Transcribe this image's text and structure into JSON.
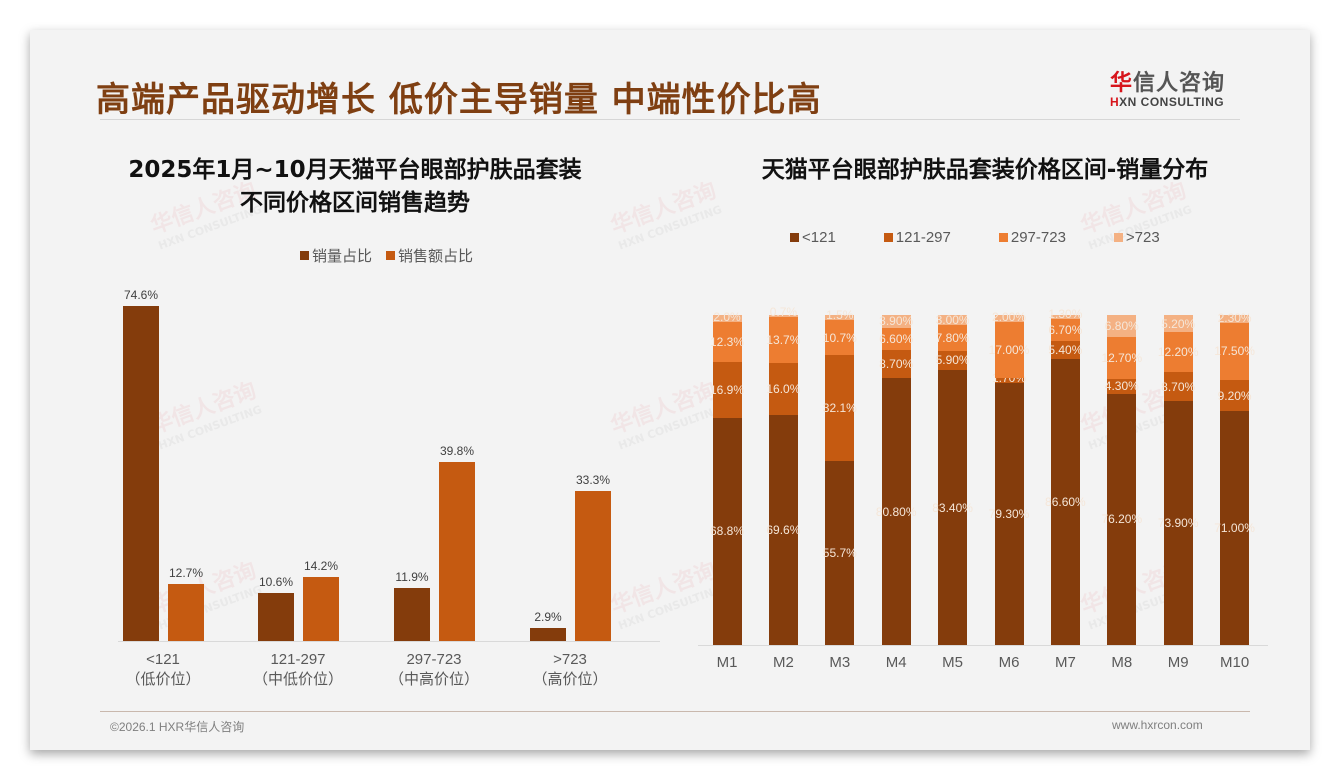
{
  "header": {
    "title": "高端产品驱动增长 低价主导销量 中端性价比高",
    "logo_cn_red": "华",
    "logo_cn_rest": "信人咨询",
    "logo_en_red": "H",
    "logo_en_rest": "XN CONSULTING"
  },
  "left_chart": {
    "title_line1": "2025年1月~10月天猫平台眼部护肤品套装",
    "title_line2": "不同价格区间销售趋势",
    "legend": [
      "销量占比",
      "销售额占比"
    ]
  },
  "right_chart": {
    "title": "天猫平台眼部护肤品套装价格区间-销量分布",
    "legend": [
      "<121",
      "121-297",
      "297-723",
      ">723"
    ]
  },
  "colors": {
    "dark_brown": "#843c0c",
    "orange": "#c55a11",
    "light_orange": "#ed7d31",
    "pale_orange": "#f4b183",
    "title_brown": "#7f3f12",
    "background": "#f3f3f3"
  },
  "chart_data": [
    {
      "type": "bar",
      "title": "2025年1月~10月天猫平台眼部护肤品套装 不同价格区间销售趋势",
      "categories": [
        "<121（低价位）",
        "121-297（中低价位）",
        "297-723（中高价位）",
        ">723（高价位）"
      ],
      "category_lines": [
        [
          "<121",
          "（低价位）"
        ],
        [
          "121-297",
          "（中低价位）"
        ],
        [
          "297-723",
          "（中高价位）"
        ],
        [
          ">723",
          "（高价位）"
        ]
      ],
      "series": [
        {
          "name": "销量占比",
          "values": [
            74.6,
            10.6,
            11.9,
            2.9
          ],
          "labels": [
            "74.6%",
            "10.6%",
            "11.9%",
            "2.9%"
          ],
          "color": "#843c0c"
        },
        {
          "name": "销售额占比",
          "values": [
            12.7,
            14.2,
            39.8,
            33.3
          ],
          "labels": [
            "12.7%",
            "14.2%",
            "39.8%",
            "33.3%"
          ],
          "color": "#c55a11"
        }
      ],
      "xlabel": "",
      "ylabel": "",
      "ylim": [
        0,
        80
      ],
      "legend_position": "top",
      "grid": false
    },
    {
      "type": "bar",
      "stacked": true,
      "percent": true,
      "title": "天猫平台眼部护肤品套装价格区间-销量分布",
      "categories": [
        "M1",
        "M2",
        "M3",
        "M4",
        "M5",
        "M6",
        "M7",
        "M8",
        "M9",
        "M10"
      ],
      "series": [
        {
          "name": "<121",
          "color": "#843c0c",
          "values": [
            68.8,
            69.6,
            55.7,
            80.8,
            83.4,
            79.3,
            86.6,
            76.2,
            73.9,
            71.0
          ],
          "labels": [
            "68.8%",
            "69.6%",
            "55.7%",
            "80.80%",
            "83.40%",
            "79.30%",
            "86.60%",
            "76.20%",
            "73.90%",
            "71.00%"
          ]
        },
        {
          "name": "121-297",
          "color": "#c55a11",
          "values": [
            16.9,
            16.0,
            32.1,
            8.7,
            5.9,
            1.7,
            5.4,
            4.3,
            8.7,
            9.2
          ],
          "labels": [
            "16.9%",
            "16.0%",
            "32.1%",
            "8.70%",
            "5.90%",
            "1.70%",
            "5.40%",
            "4.30%",
            "8.70%",
            "9.20%"
          ]
        },
        {
          "name": "297-723",
          "color": "#ed7d31",
          "values": [
            12.3,
            13.7,
            10.7,
            6.6,
            7.8,
            17.0,
            6.7,
            12.7,
            12.2,
            17.5
          ],
          "labels": [
            "12.3%",
            "13.7%",
            "10.7%",
            "6.60%",
            "7.80%",
            "17.00%",
            "6.70%",
            "12.70%",
            "12.20%",
            "17.50%"
          ]
        },
        {
          "name": ">723",
          "color": "#f4b183",
          "values": [
            2.0,
            0.7,
            1.5,
            3.9,
            3.0,
            2.0,
            1.3,
            6.8,
            5.2,
            2.3
          ],
          "labels": [
            "2.0%",
            "0.7%",
            "1.5%",
            "3.90%",
            "3.00%",
            "2.00%",
            "1.30%",
            "6.80%",
            "5.20%",
            "2.30%"
          ]
        }
      ],
      "xlabel": "",
      "ylabel": "",
      "ylim": [
        0,
        100
      ],
      "legend_position": "top",
      "grid": false
    }
  ],
  "footer": {
    "copyright": "©2026.1 HXR华信人咨询",
    "website": "www.hxrcon.com"
  },
  "watermark": {
    "cn": "华信人咨询",
    "en": "HXN CONSULTING"
  }
}
